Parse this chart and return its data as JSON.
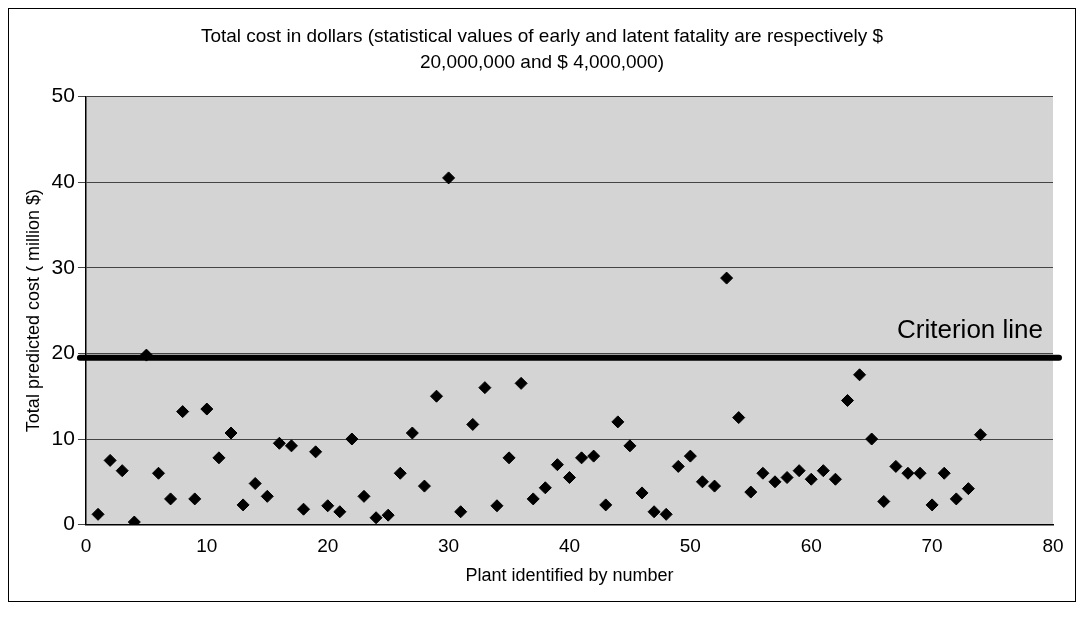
{
  "chart_data": {
    "type": "scatter",
    "title": "Total cost in dollars (statistical values of early and latent fatality are respectively $ 20,000,000 and $ 4,000,000)",
    "xlabel": "Plant identified by number",
    "ylabel": "Total predicted cost ( million $)",
    "x": [
      1,
      2,
      3,
      4,
      5,
      6,
      7,
      8,
      9,
      10,
      11,
      12,
      13,
      14,
      15,
      16,
      17,
      18,
      19,
      20,
      21,
      22,
      23,
      24,
      25,
      26,
      27,
      28,
      29,
      30,
      31,
      32,
      33,
      34,
      35,
      36,
      37,
      38,
      39,
      40,
      41,
      42,
      43,
      44,
      45,
      46,
      47,
      48,
      49,
      50,
      51,
      52,
      53,
      54,
      55,
      56,
      57,
      58,
      59,
      60,
      61,
      62,
      63,
      64,
      65,
      66,
      67,
      68,
      69,
      70,
      71,
      72,
      73,
      74
    ],
    "series": [
      {
        "color": "#000000",
        "values": [
          1.2,
          7.5,
          6.3,
          0.3,
          19.8,
          6,
          3,
          13.2,
          3,
          13.5,
          7.8,
          10.7,
          2.3,
          4.8,
          3.3,
          9.5,
          9.2,
          1.8,
          8.5,
          2.2,
          1.5,
          10,
          3.3,
          0.8,
          1.1,
          6,
          10.7,
          4.5,
          15,
          40.5,
          1.5,
          11.7,
          16,
          2.2,
          7.8,
          16.5,
          3,
          4.3,
          7,
          5.5,
          7.8,
          8,
          2.3,
          12,
          9.2,
          3.7,
          1.5,
          1.2,
          6.8,
          8,
          5,
          4.5,
          28.8,
          12.5,
          3.8,
          6,
          5,
          5.5,
          6.3,
          5.3,
          6.3,
          5.3,
          14.5,
          17.5,
          10,
          2.7,
          6.8,
          6,
          6,
          2.3,
          6,
          3,
          4.2,
          10.5
        ]
      }
    ],
    "xlim": [
      0,
      80
    ],
    "xticks": [
      0,
      10,
      20,
      30,
      40,
      50,
      60,
      70,
      80
    ],
    "ylim": [
      0,
      50
    ],
    "yticks": [
      0,
      10,
      20,
      30,
      40,
      50
    ],
    "grid": "y",
    "legend": false,
    "marker": "diamond",
    "ref_lines": [
      {
        "axis": "y",
        "value": 19.5,
        "label": "Criterion line",
        "color": "#000000"
      }
    ]
  }
}
